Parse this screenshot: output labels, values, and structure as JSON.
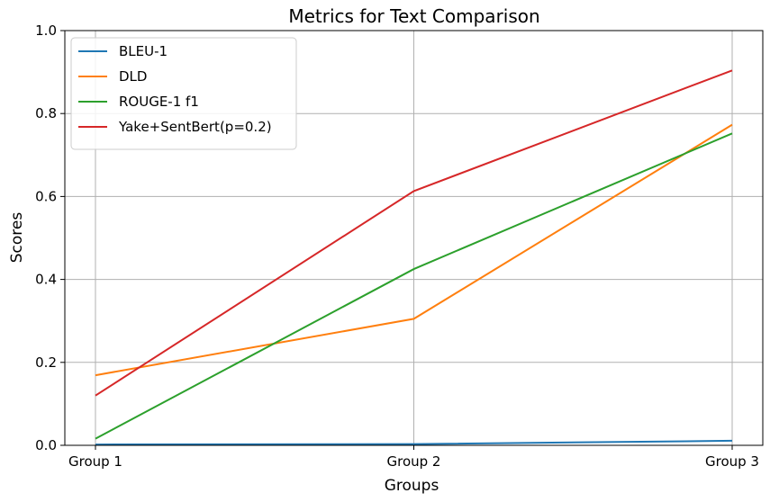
{
  "chart_data": {
    "type": "line",
    "title": "Metrics for Text Comparison",
    "xlabel": "Groups",
    "ylabel": "Scores",
    "categories": [
      "Group 1",
      "Group 2",
      "Group 3"
    ],
    "ylim": [
      0,
      1
    ],
    "yticks": [
      "0.0",
      "0.2",
      "0.4",
      "0.6",
      "0.8",
      "1.0"
    ],
    "grid": true,
    "legend_position": "top-left",
    "series": [
      {
        "name": "BLEU-1",
        "color": "#1f77b4",
        "values": [
          0.002,
          0.003,
          0.011
        ]
      },
      {
        "name": "DLD",
        "color": "#ff7f0e",
        "values": [
          0.169,
          0.305,
          0.773
        ]
      },
      {
        "name": "ROUGE-1 f1",
        "color": "#2ca02c",
        "values": [
          0.016,
          0.425,
          0.752
        ]
      },
      {
        "name": "Yake+SentBert(p=0.2)",
        "color": "#d62728",
        "values": [
          0.12,
          0.613,
          0.904
        ]
      }
    ]
  }
}
